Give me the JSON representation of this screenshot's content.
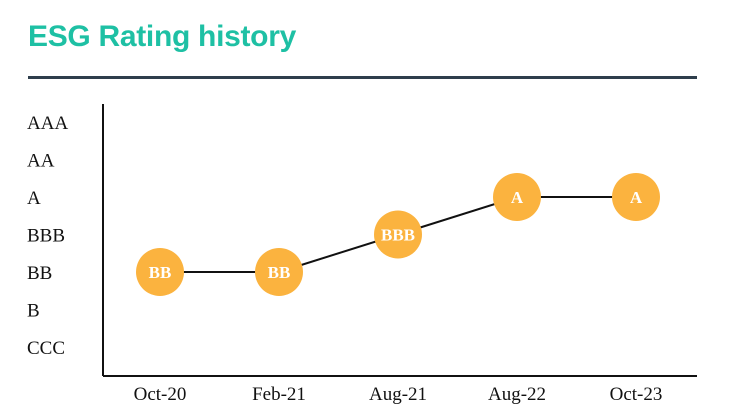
{
  "page": {
    "title": "ESG Rating history"
  },
  "colors": {
    "title": "#1ec0a4",
    "rule": "#2e3e4c",
    "marker": "#fbb33f",
    "line": "#111111"
  },
  "chart_data": {
    "type": "line",
    "title": "ESG Rating history",
    "xlabel": "",
    "ylabel": "",
    "categories": [
      "Oct-20",
      "Feb-21",
      "Aug-21",
      "Aug-22",
      "Oct-23"
    ],
    "y_categories": [
      "CCC",
      "B",
      "BB",
      "BBB",
      "A",
      "AA",
      "AAA"
    ],
    "series": [
      {
        "values": [
          "BB",
          "BB",
          "BBB",
          "A",
          "A"
        ]
      }
    ],
    "data_labels": [
      "BB",
      "BB",
      "BBB",
      "A",
      "A"
    ],
    "grid": false,
    "legend": "none"
  }
}
